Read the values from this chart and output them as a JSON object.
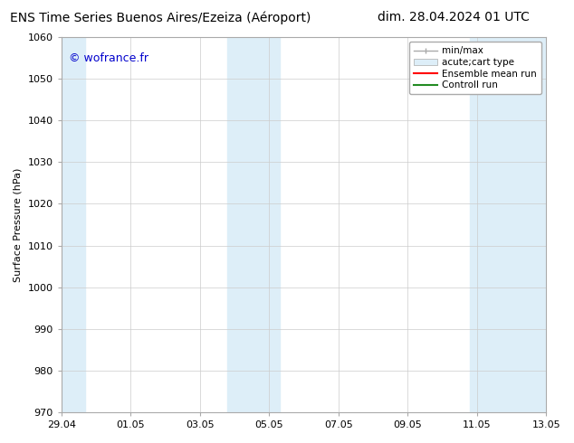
{
  "title": "ENS Time Series Buenos Aires/Ezeiza (Aéroport)",
  "title_right": "dim. 28.04.2024 01 UTC",
  "ylabel": "Surface Pressure (hPa)",
  "ylim": [
    970,
    1060
  ],
  "yticks": [
    970,
    980,
    990,
    1000,
    1010,
    1020,
    1030,
    1040,
    1050,
    1060
  ],
  "xtick_labels": [
    "29.04",
    "01.05",
    "03.05",
    "05.05",
    "07.05",
    "09.05",
    "11.05",
    "13.05"
  ],
  "xtick_positions": [
    0,
    2,
    4,
    6,
    8,
    10,
    12,
    14
  ],
  "xlim": [
    0,
    14
  ],
  "watermark": "© wofrance.fr",
  "watermark_color": "#0000cc",
  "background_color": "#ffffff",
  "plot_bg_color": "#ffffff",
  "shaded_bands": [
    {
      "xstart": 0.0,
      "xend": 0.7,
      "color": "#ddeef8"
    },
    {
      "xstart": 4.8,
      "xend": 6.3,
      "color": "#ddeef8"
    },
    {
      "xstart": 11.8,
      "xend": 14.0,
      "color": "#ddeef8"
    }
  ],
  "legend_entries": [
    {
      "label": "min/max",
      "color": "#aaaaaa"
    },
    {
      "label": "acute;cart type",
      "color": "#ddeef8"
    },
    {
      "label": "Ensemble mean run",
      "color": "#ff0000"
    },
    {
      "label": "Controll run",
      "color": "#008000"
    }
  ],
  "title_fontsize": 10,
  "tick_fontsize": 8,
  "ylabel_fontsize": 8,
  "watermark_fontsize": 9,
  "grid_color": "#cccccc"
}
